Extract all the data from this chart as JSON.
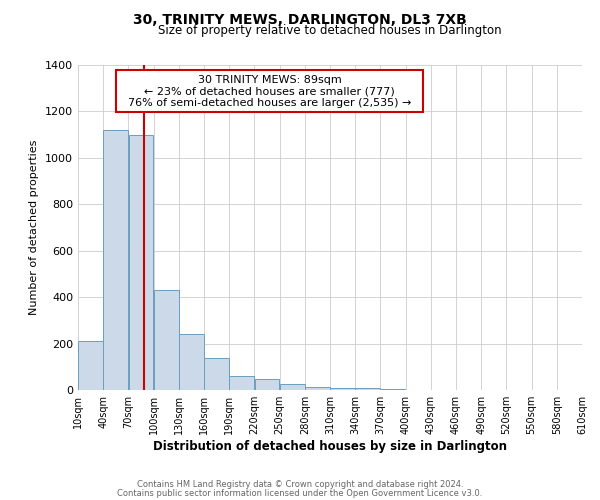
{
  "title": "30, TRINITY MEWS, DARLINGTON, DL3 7XB",
  "subtitle": "Size of property relative to detached houses in Darlington",
  "xlabel": "Distribution of detached houses by size in Darlington",
  "ylabel": "Number of detached properties",
  "bar_color": "#ccd9e8",
  "bar_edge_color": "#6a9fc0",
  "property_line_color": "#cc0000",
  "property_size": 89,
  "annotation_line1": "30 TRINITY MEWS: 89sqm",
  "annotation_line2": "← 23% of detached houses are smaller (777)",
  "annotation_line3": "76% of semi-detached houses are larger (2,535) →",
  "annotation_box_color": "#ffffff",
  "annotation_box_edge": "#cc0000",
  "bins": [
    10,
    40,
    70,
    100,
    130,
    160,
    190,
    220,
    250,
    280,
    310,
    340,
    370,
    400,
    430,
    460,
    490,
    520,
    550,
    580,
    610
  ],
  "counts": [
    210,
    1120,
    1100,
    430,
    240,
    140,
    60,
    48,
    25,
    15,
    10,
    8,
    5,
    2,
    2,
    0,
    0,
    0,
    0,
    0
  ],
  "ylim": [
    0,
    1400
  ],
  "yticks": [
    0,
    200,
    400,
    600,
    800,
    1000,
    1200,
    1400
  ],
  "footnote1": "Contains HM Land Registry data © Crown copyright and database right 2024.",
  "footnote2": "Contains public sector information licensed under the Open Government Licence v3.0.",
  "background_color": "#ffffff",
  "grid_color": "#cccccc"
}
